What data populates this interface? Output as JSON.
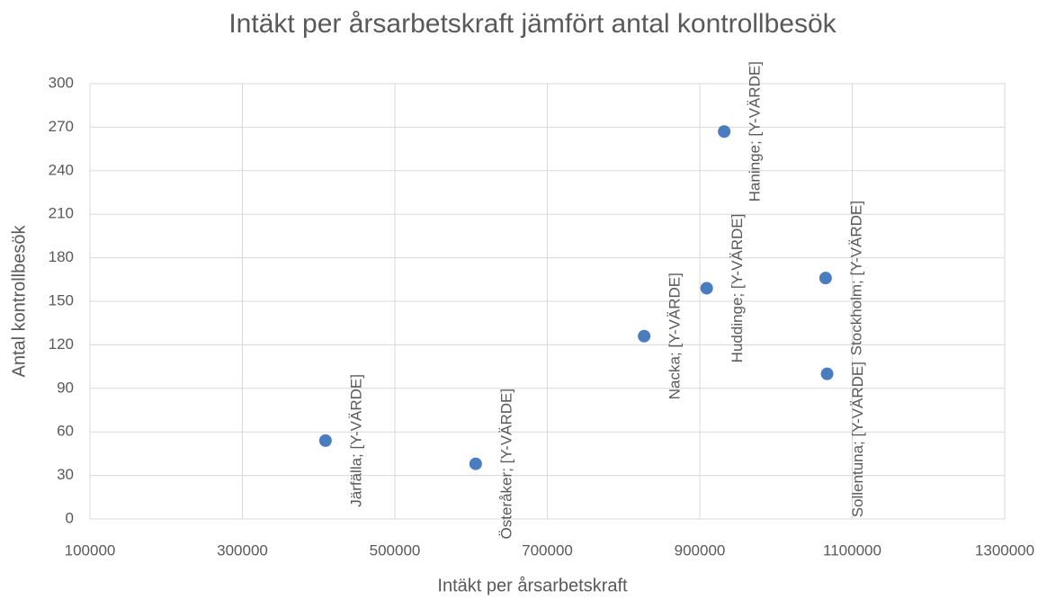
{
  "chart_data": {
    "type": "scatter",
    "title": "Intäkt per årsarbetskraft jämfört antal kontrollbesök",
    "x_label": "Intäkt per årsarbetskraft",
    "y_label": "Antal kontrollbesök",
    "x": [
      409000,
      606000,
      827000,
      909000,
      932000,
      1065000,
      1067000
    ],
    "values": [
      54,
      38,
      126,
      159,
      267,
      166,
      100
    ],
    "point_labels": [
      "Järfälla; [Y-VÄRDE]",
      "Österåker; [Y-VÄRDE]",
      "Nacka; [Y-VÄRDE]",
      "Huddinge; [Y-VÄRDE]",
      "Haninge; [Y-VÄRDE]",
      "Stockholm; [Y-VÄRDE]",
      "Sollentuna; [Y-VÄRDE]"
    ],
    "color": "#4a7cc0",
    "xlim": [
      100000,
      1300000
    ],
    "xticks": [
      100000,
      300000,
      500000,
      700000,
      900000,
      1100000,
      1300000
    ],
    "ylim": [
      0,
      300
    ],
    "yticks": [
      0,
      30,
      60,
      90,
      120,
      150,
      180,
      210,
      240,
      270,
      300
    ],
    "grid": true
  }
}
